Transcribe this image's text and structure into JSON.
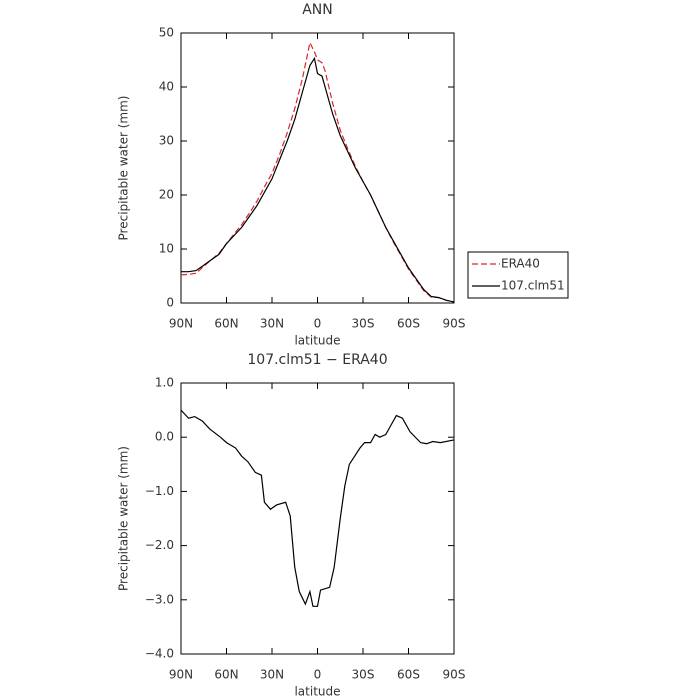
{
  "chart_data": [
    {
      "type": "line",
      "title": "ANN",
      "xlabel": "latitude",
      "ylabel": "Precipitable water (mm)",
      "x": [
        90,
        85,
        80,
        75,
        70,
        65,
        60,
        55,
        50,
        45,
        40,
        35,
        30,
        25,
        20,
        15,
        10,
        5,
        2,
        0,
        -3,
        -5,
        -10,
        -15,
        -20,
        -25,
        -30,
        -35,
        -40,
        -45,
        -50,
        -55,
        -60,
        -65,
        -70,
        -75,
        -80,
        -85,
        -90
      ],
      "series": [
        {
          "name": "ERA40",
          "color": "#d62728",
          "dashed": true,
          "values": [
            5.2,
            5.3,
            5.5,
            6.8,
            8,
            9.2,
            11,
            12.8,
            14.5,
            16.6,
            18.8,
            21.5,
            24,
            27.5,
            31.5,
            36,
            41.5,
            48.2,
            46.5,
            45,
            44.5,
            43,
            37,
            32,
            28.5,
            25.3,
            22.5,
            20,
            17,
            14,
            11.3,
            8.8,
            6.3,
            4.3,
            2.3,
            1.1,
            1,
            0.5,
            0.2
          ]
        },
        {
          "name": "107.clm51",
          "color": "#000000",
          "dashed": false,
          "values": [
            5.8,
            5.8,
            6,
            7,
            8,
            9,
            11,
            12.5,
            14,
            16,
            18,
            20.5,
            23,
            26.5,
            30,
            34,
            39,
            44,
            45.3,
            42.5,
            42,
            40,
            35,
            31,
            28,
            25,
            22.5,
            20,
            17,
            14,
            11.5,
            9,
            6.5,
            4.5,
            2.5,
            1.2,
            1,
            0.5,
            0.2
          ]
        }
      ],
      "xlim": [
        90,
        -90
      ],
      "xticks": [
        {
          "value": 90,
          "label": "90N"
        },
        {
          "value": 60,
          "label": "60N"
        },
        {
          "value": 30,
          "label": "30N"
        },
        0,
        {
          "value": -30,
          "label": "30S"
        },
        {
          "value": -60,
          "label": "60S"
        },
        {
          "value": -90,
          "label": "90S"
        }
      ],
      "ylim": [
        0,
        50
      ],
      "yticks": [
        0,
        10,
        20,
        30,
        40,
        50
      ],
      "legend": "right"
    },
    {
      "type": "line",
      "title": "107.clm51 − ERA40",
      "xlabel": "latitude",
      "ylabel": "Precipitable water (mm)",
      "x": [
        90,
        85,
        81,
        76,
        71,
        64,
        60,
        54,
        50,
        46,
        41,
        37,
        35,
        31,
        27,
        21,
        18,
        15,
        12,
        8,
        5,
        3,
        0,
        -2,
        -8,
        -11,
        -15,
        -18,
        -21,
        -28,
        -31,
        -35,
        -38,
        -41,
        -45,
        -48,
        -52,
        -56,
        -61,
        -68,
        -72,
        -76,
        -81,
        -90
      ],
      "color": "#000000",
      "values": [
        0.5,
        0.35,
        0.38,
        0.3,
        0.15,
        0,
        -0.1,
        -0.2,
        -0.35,
        -0.45,
        -0.65,
        -0.7,
        -1.2,
        -1.33,
        -1.25,
        -1.2,
        -1.45,
        -2.4,
        -2.85,
        -3.08,
        -2.85,
        -3.12,
        -3.12,
        -2.82,
        -2.77,
        -2.4,
        -1.5,
        -0.9,
        -0.5,
        -0.2,
        -0.1,
        -0.1,
        0.05,
        0,
        0.05,
        0.2,
        0.4,
        0.35,
        0.1,
        -0.1,
        -0.12,
        -0.08,
        -0.1,
        -0.05
      ],
      "xlim": [
        90,
        -90
      ],
      "xticks": [
        {
          "value": 90,
          "label": "90N"
        },
        {
          "value": 60,
          "label": "60N"
        },
        {
          "value": 30,
          "label": "30N"
        },
        0,
        {
          "value": -30,
          "label": "30S"
        },
        {
          "value": -60,
          "label": "60S"
        },
        {
          "value": -90,
          "label": "90S"
        }
      ],
      "ylim": [
        -4,
        1
      ],
      "yticks": [
        {
          "value": -4,
          "label": "−4.0"
        },
        {
          "value": -3,
          "label": "−3.0"
        },
        {
          "value": -2,
          "label": "−2.0"
        },
        {
          "value": -1,
          "label": "−1.0"
        },
        {
          "value": 0,
          "label": "0.0"
        },
        {
          "value": 1,
          "label": "1.0"
        }
      ]
    }
  ]
}
